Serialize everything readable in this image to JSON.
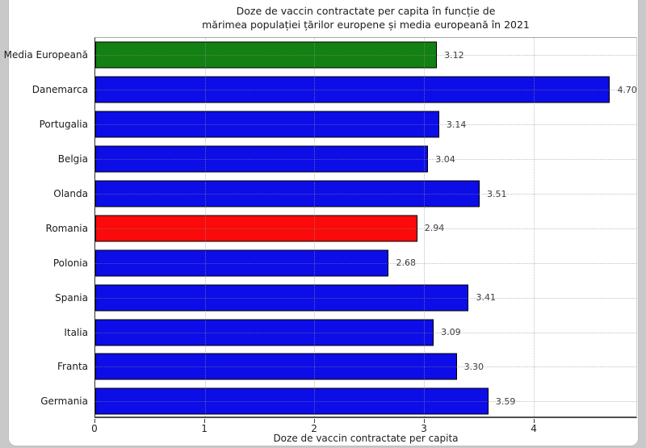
{
  "figure": {
    "page_background": "#c9c9c9",
    "card_background": "#ffffff"
  },
  "chart_data": {
    "type": "bar",
    "orientation": "horizontal",
    "title_line1": "Doze de vaccin contractate per capita în funcție de",
    "title_line2": "mărimea populației țărilor europene și media europeană în 2021",
    "xlabel": "Doze de vaccin contractate per capita",
    "categories": [
      "Media Europeană",
      "Danemarca",
      "Portugalia",
      "Belgia",
      "Olanda",
      "Romania",
      "Polonia",
      "Spania",
      "Italia",
      "Franta",
      "Germania"
    ],
    "values": [
      3.12,
      4.7,
      3.14,
      3.04,
      3.51,
      2.94,
      2.68,
      3.41,
      3.09,
      3.3,
      3.59
    ],
    "value_labels": [
      "3.12",
      "4.70",
      "3.14",
      "3.04",
      "3.51",
      "2.94",
      "2.68",
      "3.41",
      "3.09",
      "3.30",
      "3.59"
    ],
    "bar_colors": [
      "#128012",
      "#0d0de8",
      "#0d0de8",
      "#0d0de8",
      "#0d0de8",
      "#fa0a0a",
      "#0d0de8",
      "#0d0de8",
      "#0d0de8",
      "#0d0de8",
      "#0d0de8"
    ],
    "bar_edge_color": "#000000",
    "xlim": [
      0,
      4.94
    ],
    "xticks": [
      "0",
      "1",
      "2",
      "3",
      "4"
    ],
    "grid": "dotted",
    "legend_position": "none",
    "highlight_colors": {
      "media_europeana": "#128012",
      "romania": "#fa0a0a",
      "default": "#0d0de8"
    }
  }
}
